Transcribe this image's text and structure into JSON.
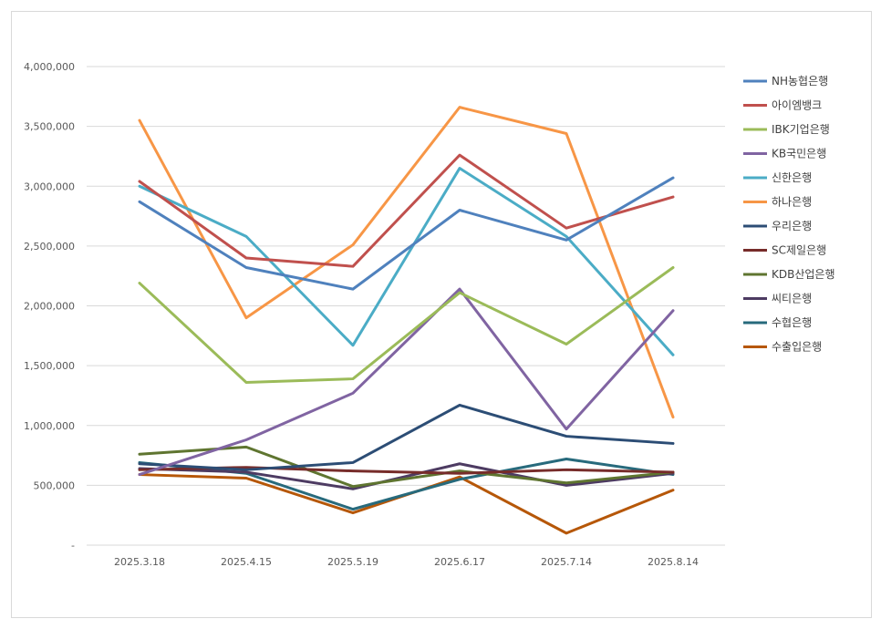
{
  "chart_data": {
    "type": "line",
    "title": "",
    "xlabel": "",
    "ylabel": "",
    "categories": [
      "2025.3.18",
      "2025.4.15",
      "2025.5.19",
      "2025.6.17",
      "2025.7.14",
      "2025.8.14"
    ],
    "ylim": [
      0,
      4000000
    ],
    "y_ticks": [
      0,
      500000,
      1000000,
      1500000,
      2000000,
      2500000,
      3000000,
      3500000,
      4000000
    ],
    "y_tick_labels": [
      "-",
      "500,000",
      "1,000,000",
      "1,500,000",
      "2,000,000",
      "2,500,000",
      "3,000,000",
      "3,500,000",
      "4,000,000"
    ],
    "grid": true,
    "legend_position": "right",
    "series": [
      {
        "name": "NH농협은행",
        "color": "#4f81bd",
        "values": [
          2870000,
          2320000,
          2140000,
          2800000,
          2550000,
          3070000
        ]
      },
      {
        "name": "아이엠뱅크",
        "color": "#c0504d",
        "values": [
          3040000,
          2400000,
          2330000,
          3260000,
          2650000,
          2910000
        ]
      },
      {
        "name": "IBK기업은행",
        "color": "#9bbb59",
        "values": [
          2190000,
          1360000,
          1390000,
          2110000,
          1680000,
          2320000
        ]
      },
      {
        "name": "KB국민은행",
        "color": "#8064a2",
        "values": [
          590000,
          880000,
          1270000,
          2140000,
          970000,
          1960000
        ]
      },
      {
        "name": "신한은행",
        "color": "#4bacc6",
        "values": [
          3000000,
          2580000,
          1670000,
          3150000,
          2580000,
          1590000
        ]
      },
      {
        "name": "하나은행",
        "color": "#f79646",
        "values": [
          3550000,
          1900000,
          2510000,
          3660000,
          3440000,
          1070000
        ]
      },
      {
        "name": "우리은행",
        "color": "#2c4d75",
        "values": [
          680000,
          630000,
          690000,
          1170000,
          910000,
          850000
        ]
      },
      {
        "name": "SC제일은행",
        "color": "#772c2a",
        "values": [
          630000,
          650000,
          620000,
          600000,
          630000,
          610000
        ]
      },
      {
        "name": "KDB산업은행",
        "color": "#5f7530",
        "values": [
          760000,
          820000,
          490000,
          620000,
          520000,
          610000
        ]
      },
      {
        "name": "씨티은행",
        "color": "#4d3b62",
        "values": [
          640000,
          610000,
          470000,
          680000,
          500000,
          600000
        ]
      },
      {
        "name": "수협은행",
        "color": "#276a7c",
        "values": [
          690000,
          600000,
          300000,
          550000,
          720000,
          590000
        ]
      },
      {
        "name": "수출입은행",
        "color": "#b65708",
        "values": [
          590000,
          560000,
          270000,
          570000,
          100000,
          460000
        ]
      }
    ]
  }
}
